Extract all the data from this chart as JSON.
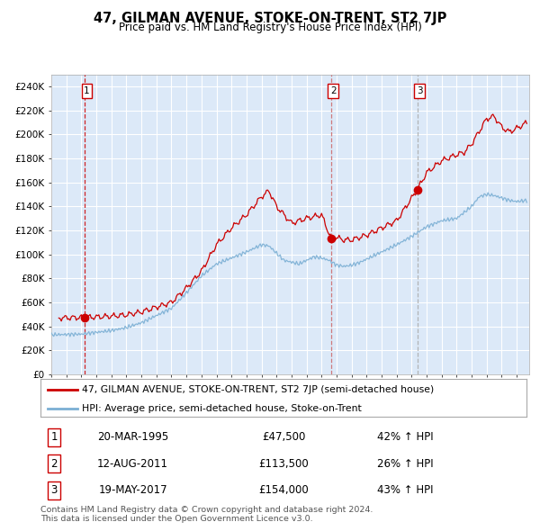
{
  "title": "47, GILMAN AVENUE, STOKE-ON-TRENT, ST2 7JP",
  "subtitle": "Price paid vs. HM Land Registry's House Price Index (HPI)",
  "legend_line1": "47, GILMAN AVENUE, STOKE-ON-TRENT, ST2 7JP (semi-detached house)",
  "legend_line2": "HPI: Average price, semi-detached house, Stoke-on-Trent",
  "transactions": [
    {
      "num": 1,
      "date": "20-MAR-1995",
      "price": 47500,
      "price_str": "£47,500",
      "pct": "42%",
      "direction": "↑"
    },
    {
      "num": 2,
      "date": "12-AUG-2011",
      "price": 113500,
      "price_str": "£113,500",
      "pct": "26%",
      "direction": "↑"
    },
    {
      "num": 3,
      "date": "19-MAY-2017",
      "price": 154000,
      "price_str": "£154,000",
      "pct": "43%",
      "direction": "↑"
    }
  ],
  "transaction_dates_decimal": [
    1995.22,
    2011.62,
    2017.38
  ],
  "vline_colors": [
    "#cc0000",
    "#cc6666",
    "#aaaaaa"
  ],
  "ylabel_ticks": [
    "£0",
    "£20K",
    "£40K",
    "£60K",
    "£80K",
    "£100K",
    "£120K",
    "£140K",
    "£160K",
    "£180K",
    "£200K",
    "£220K",
    "£240K"
  ],
  "ytick_values": [
    0,
    20000,
    40000,
    60000,
    80000,
    100000,
    120000,
    140000,
    160000,
    180000,
    200000,
    220000,
    240000
  ],
  "ylim": [
    0,
    250000
  ],
  "xlim_start": 1993.0,
  "xlim_end": 2024.83,
  "plot_bg_color": "#dce9f8",
  "grid_color": "#ffffff",
  "hpi_color": "#7bafd4",
  "price_color": "#cc0000",
  "marker_color": "#cc0000",
  "footer_text": "Contains HM Land Registry data © Crown copyright and database right 2024.\nThis data is licensed under the Open Government Licence v3.0.",
  "hpi_anchors": {
    "1993.0": 33000,
    "1994.0": 33200,
    "1995.0": 33500,
    "1996.0": 35000,
    "1997.0": 36500,
    "1998.0": 39000,
    "1999.0": 43000,
    "2000.0": 49000,
    "2001.0": 55000,
    "2002.0": 68000,
    "2003.0": 82000,
    "2004.0": 92000,
    "2005.0": 97000,
    "2006.0": 102000,
    "2007.0": 108000,
    "2007.5": 107000,
    "2008.5": 95000,
    "2009.5": 92000,
    "2010.0": 95000,
    "2010.5": 98000,
    "2011.0": 97000,
    "2011.5": 95000,
    "2012.0": 91000,
    "2012.5": 90000,
    "2013.0": 91000,
    "2013.5": 93000,
    "2014.0": 96000,
    "2015.0": 102000,
    "2016.0": 108000,
    "2017.0": 115000,
    "2018.0": 123000,
    "2019.0": 128000,
    "2020.0": 130000,
    "2021.0": 140000,
    "2021.5": 148000,
    "2022.0": 150000,
    "2022.5": 149000,
    "2023.0": 147000,
    "2023.5": 145000,
    "2024.0": 144000,
    "2024.7": 145000
  },
  "prop_anchors": {
    "1993.5": 47000,
    "1995.22": 47500,
    "1996.0": 47800,
    "1997.0": 48500,
    "1998.0": 49500,
    "1999.0": 52000,
    "2000.0": 56000,
    "2001.0": 60000,
    "2002.0": 72000,
    "2003.0": 86000,
    "2004.0": 108000,
    "2005.0": 122000,
    "2006.0": 133000,
    "2007.0": 148000,
    "2007.5": 153000,
    "2008.0": 140000,
    "2009.0": 126000,
    "2010.0": 130000,
    "2011.0": 133000,
    "2011.62": 113500,
    "2012.0": 114000,
    "2012.5": 112000,
    "2013.0": 112000,
    "2014.0": 116000,
    "2015.0": 122000,
    "2016.0": 128000,
    "2017.38": 154000,
    "2018.0": 168000,
    "2019.0": 178000,
    "2020.0": 183000,
    "2020.5": 185000,
    "2021.0": 192000,
    "2022.0": 213000,
    "2022.5": 215000,
    "2023.0": 206000,
    "2023.5": 202000,
    "2024.0": 205000,
    "2024.7": 210000
  }
}
